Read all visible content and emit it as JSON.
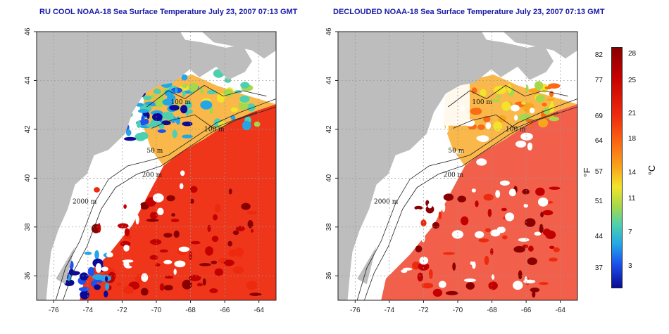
{
  "titles": {
    "left": "RU COOL NOAA-18 Sea Surface Temperature July 23, 2007 07:13 GMT",
    "right": "DECLOUDED NOAA-18 Sea Surface Temperature July 23, 2007 07:13 GMT"
  },
  "axes": {
    "lon_labels": [
      "-76",
      "-74",
      "-72",
      "-70",
      "-68",
      "-66",
      "-64"
    ],
    "lat_labels": [
      "36",
      "38",
      "40",
      "42",
      "44",
      "46"
    ],
    "lon_values": [
      -76,
      -74,
      -72,
      -70,
      -68,
      -66,
      -64
    ],
    "lat_values": [
      36,
      38,
      40,
      42,
      44,
      46
    ],
    "lon_range": [
      -77,
      -63
    ],
    "lat_range": [
      35,
      46
    ]
  },
  "isobaths": {
    "m50_a": "50 m",
    "m100_a": "100 m",
    "m100_b": "100 m",
    "m200": "200 m",
    "m2000": "2000 m"
  },
  "colorbar": {
    "unit_f": "°F",
    "unit_c": "°C",
    "fahrenheit_labels": [
      "82",
      "77",
      "69",
      "64",
      "57",
      "51",
      "44",
      "37"
    ],
    "celsius_labels": [
      "28",
      "25",
      "21",
      "18",
      "14",
      "11",
      "7",
      "3"
    ],
    "fahrenheit_values": [
      82,
      77,
      69,
      64,
      57,
      51,
      44,
      37
    ],
    "celsius_values": [
      28,
      25,
      21,
      18,
      14,
      11,
      7,
      3
    ],
    "range_c": [
      0,
      29
    ],
    "colors": [
      "#8a0000",
      "#c30000",
      "#ee2a0e",
      "#fb6a14",
      "#f8a61c",
      "#f2e42a",
      "#a7d84a",
      "#4cd0b0",
      "#22a6e8",
      "#1c52ee",
      "#0a0a96"
    ]
  },
  "colors": {
    "land": "#bdbdbd",
    "cloud": "#ffffff",
    "contour": "#222222",
    "title": "#1a1aa8"
  }
}
